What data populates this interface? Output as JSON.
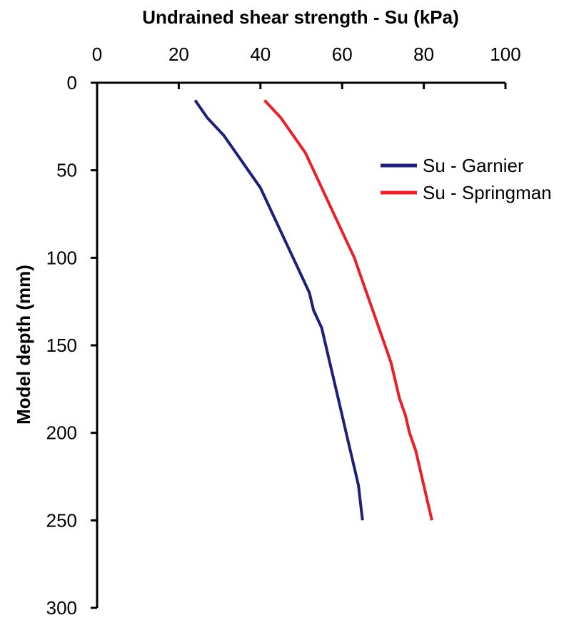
{
  "chart_data": {
    "type": "line",
    "title": "",
    "xlabel": "Undrained shear strength - Su (kPa)",
    "ylabel": "Model depth (mm)",
    "xlim": [
      0,
      100
    ],
    "ylim": [
      0,
      300
    ],
    "y_inverted": true,
    "x_axis_position": "top",
    "x_ticks": [
      0,
      20,
      40,
      60,
      80,
      100
    ],
    "y_ticks": [
      0,
      50,
      100,
      150,
      200,
      250,
      300
    ],
    "grid": false,
    "legend_position": "right",
    "series": [
      {
        "name": "Su - Garnier",
        "color": "#1f1f7a",
        "points": [
          [
            24,
            10
          ],
          [
            27,
            20
          ],
          [
            31,
            30
          ],
          [
            34,
            40
          ],
          [
            37,
            50
          ],
          [
            40,
            60
          ],
          [
            42,
            70
          ],
          [
            44,
            80
          ],
          [
            46,
            90
          ],
          [
            48,
            100
          ],
          [
            50,
            110
          ],
          [
            52,
            120
          ],
          [
            53,
            130
          ],
          [
            55,
            140
          ],
          [
            56,
            150
          ],
          [
            57,
            160
          ],
          [
            58,
            170
          ],
          [
            59,
            180
          ],
          [
            60,
            190
          ],
          [
            61,
            200
          ],
          [
            62,
            210
          ],
          [
            63,
            220
          ],
          [
            64,
            230
          ],
          [
            64.5,
            240
          ],
          [
            65,
            250
          ]
        ]
      },
      {
        "name": "Su - Springman",
        "color": "#e8202a",
        "points": [
          [
            41,
            10
          ],
          [
            45,
            20
          ],
          [
            48,
            30
          ],
          [
            51,
            40
          ],
          [
            53,
            50
          ],
          [
            55,
            60
          ],
          [
            57,
            70
          ],
          [
            59,
            80
          ],
          [
            61,
            90
          ],
          [
            63,
            100
          ],
          [
            64.5,
            110
          ],
          [
            66,
            120
          ],
          [
            67.5,
            130
          ],
          [
            69,
            140
          ],
          [
            70.5,
            150
          ],
          [
            72,
            160
          ],
          [
            73,
            170
          ],
          [
            74,
            180
          ],
          [
            75.5,
            190
          ],
          [
            76.5,
            200
          ],
          [
            78,
            210
          ],
          [
            79,
            220
          ],
          [
            80,
            230
          ],
          [
            81,
            240
          ],
          [
            82,
            250
          ]
        ]
      }
    ]
  }
}
